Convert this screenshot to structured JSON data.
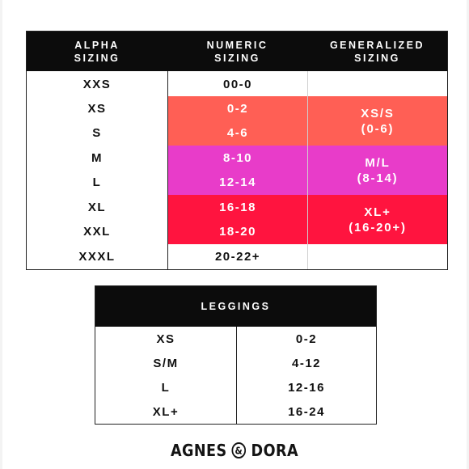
{
  "main_table": {
    "headers": {
      "alpha": "ALPHA\nSIZING",
      "numeric": "NUMERIC\nSIZING",
      "generalized": "GENERALIZED\nSIZING"
    },
    "alpha_sizes": [
      "XXS",
      "XS",
      "S",
      "M",
      "L",
      "XL",
      "XXL",
      "XXXL"
    ],
    "numeric_sizes": [
      "00-0",
      "0-2",
      "4-6",
      "8-10",
      "12-14",
      "16-18",
      "18-20",
      "20-22+"
    ],
    "generalized_groups": [
      {
        "label": "XS/S\n(0-6)",
        "color": "#ff5f55"
      },
      {
        "label": "M/L\n(8-14)",
        "color": "#e83cc9"
      },
      {
        "label": "XL+\n(16-20+)",
        "color": "#ff143f"
      }
    ]
  },
  "leggings_table": {
    "header": "LEGGINGS",
    "rows": [
      {
        "alpha": "XS",
        "numeric": "0-2"
      },
      {
        "alpha": "S/M",
        "numeric": "4-12"
      },
      {
        "alpha": "L",
        "numeric": "12-16"
      },
      {
        "alpha": "XL+",
        "numeric": "16-24"
      }
    ]
  },
  "brand": {
    "left": "AGNES",
    "right": "DORA"
  },
  "colors": {
    "header_bg": "#0c0c0c",
    "coral": "#ff5f55",
    "magenta": "#e83cc9",
    "red": "#ff143f"
  }
}
